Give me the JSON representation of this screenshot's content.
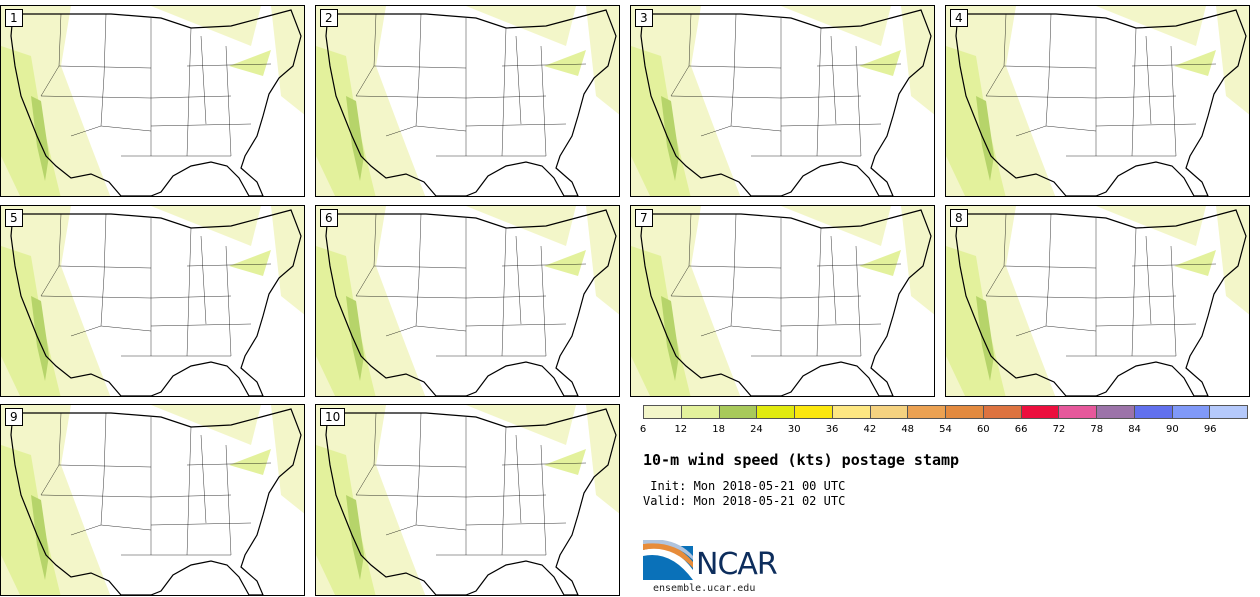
{
  "panels": [
    {
      "label": "1"
    },
    {
      "label": "2"
    },
    {
      "label": "3"
    },
    {
      "label": "4"
    },
    {
      "label": "5"
    },
    {
      "label": "6"
    },
    {
      "label": "7"
    },
    {
      "label": "8"
    },
    {
      "label": "9"
    },
    {
      "label": "10"
    }
  ],
  "colorbar": {
    "colors": [
      "#f3f6c9",
      "#e3f19c",
      "#a8c95a",
      "#e1ea0f",
      "#fbe70e",
      "#fde782",
      "#f5d280",
      "#eba152",
      "#e38a3f",
      "#dd7340",
      "#ec0f3e",
      "#e6589b",
      "#9c73a9",
      "#6170ed",
      "#8099f8",
      "#b5c9fb"
    ],
    "ticks": [
      "6",
      "12",
      "18",
      "24",
      "30",
      "36",
      "42",
      "48",
      "54",
      "60",
      "66",
      "72",
      "78",
      "84",
      "90",
      "96"
    ]
  },
  "title": "10-m wind speed (kts) postage stamp",
  "init": " Init: Mon 2018-05-21 00 UTC",
  "valid": "Valid: Mon 2018-05-21 02 UTC",
  "logo_text": "NCAR",
  "site": "ensemble.ucar.edu",
  "map_colors": {
    "light": "#f3f6c9",
    "mid": "#e3f19c",
    "strong": "#b6d46a",
    "outline": "#000000"
  }
}
